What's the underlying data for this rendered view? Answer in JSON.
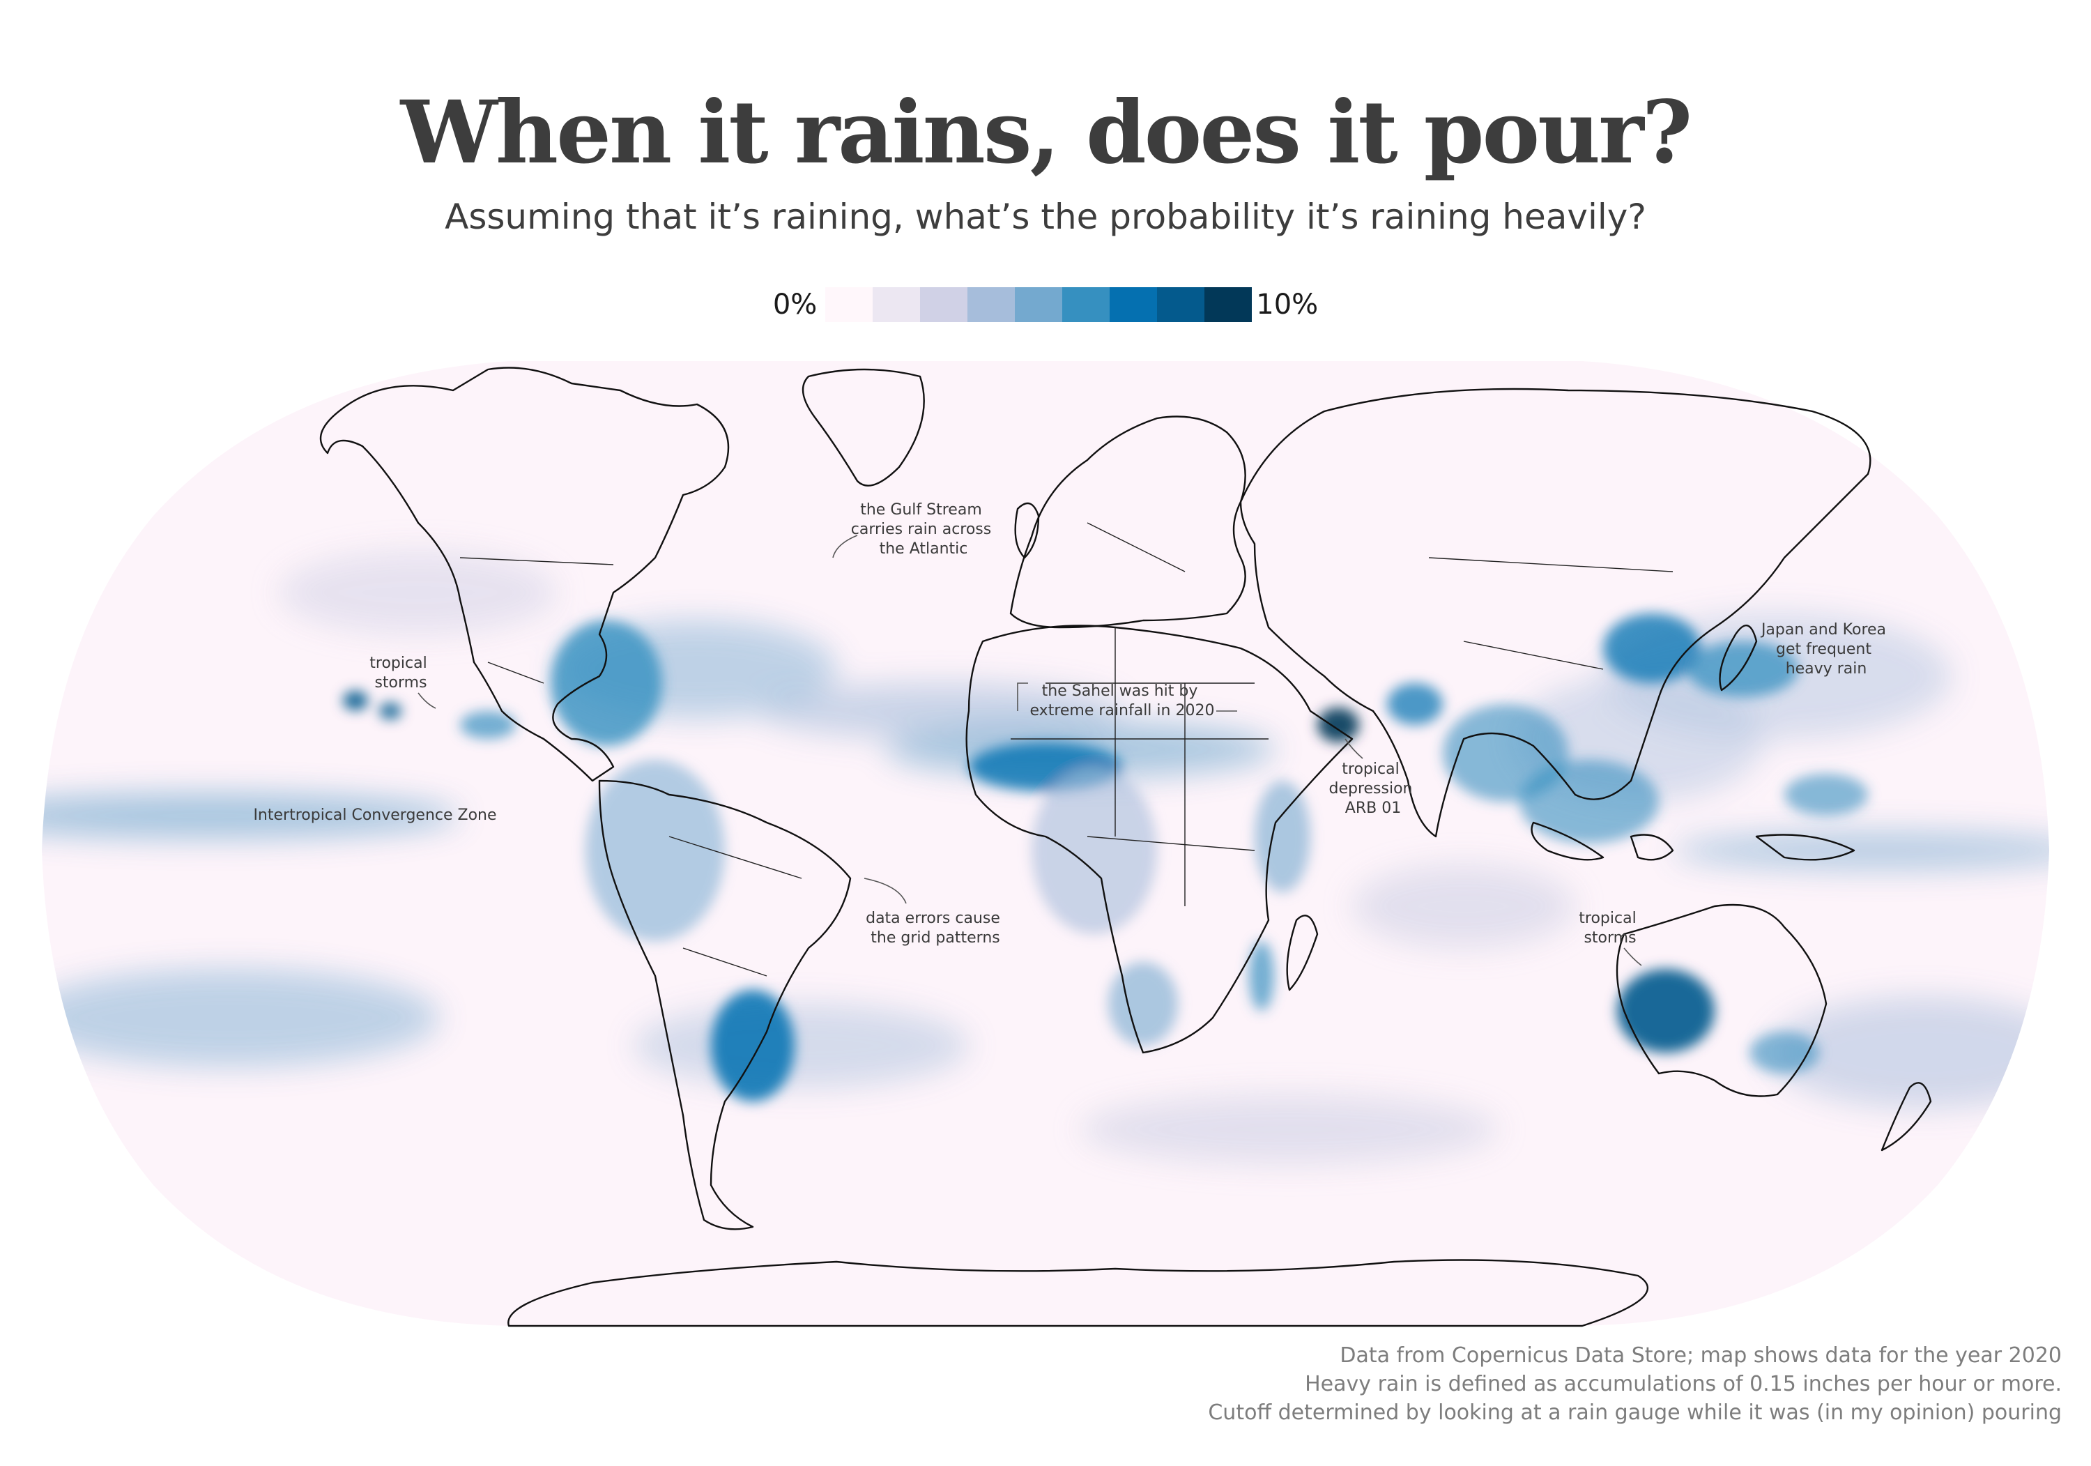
{
  "title": "When it rains, does it pour?",
  "subtitle": "Assuming that it’s raining, what’s the probability it’s raining heavily?",
  "legend": {
    "min_label": "0%",
    "max_label": "10%",
    "colors": [
      "#fff7fb",
      "#ece7f2",
      "#d0d1e6",
      "#a6bddb",
      "#74a9cf",
      "#3690c0",
      "#0570b0",
      "#045a8d",
      "#023858"
    ]
  },
  "annotations": {
    "gulf_stream": [
      "the Gulf Stream",
      "carries rain across",
      "the Atlantic"
    ],
    "tropical_storms_pacific": [
      "tropical",
      "storms"
    ],
    "itcz": [
      "Intertropical Convergence Zone"
    ],
    "sahel": [
      "the Sahel was hit by",
      "extreme rainfall in 2020"
    ],
    "arb01": [
      "tropical",
      "depression",
      "ARB 01"
    ],
    "japan_korea": [
      "Japan and Korea",
      "get frequent",
      "heavy rain"
    ],
    "grid_errors": [
      "data errors cause",
      "the grid patterns"
    ],
    "tropical_storms_australia": [
      "tropical",
      "storms"
    ]
  },
  "footer": [
    "Data from Copernicus Data Store; map shows data for the year 2020",
    "Heavy rain is defined as accumulations of 0.15 inches per hour or more.",
    "Cutoff determined by looking at a rain gauge while it was (in my opinion) pouring"
  ]
}
